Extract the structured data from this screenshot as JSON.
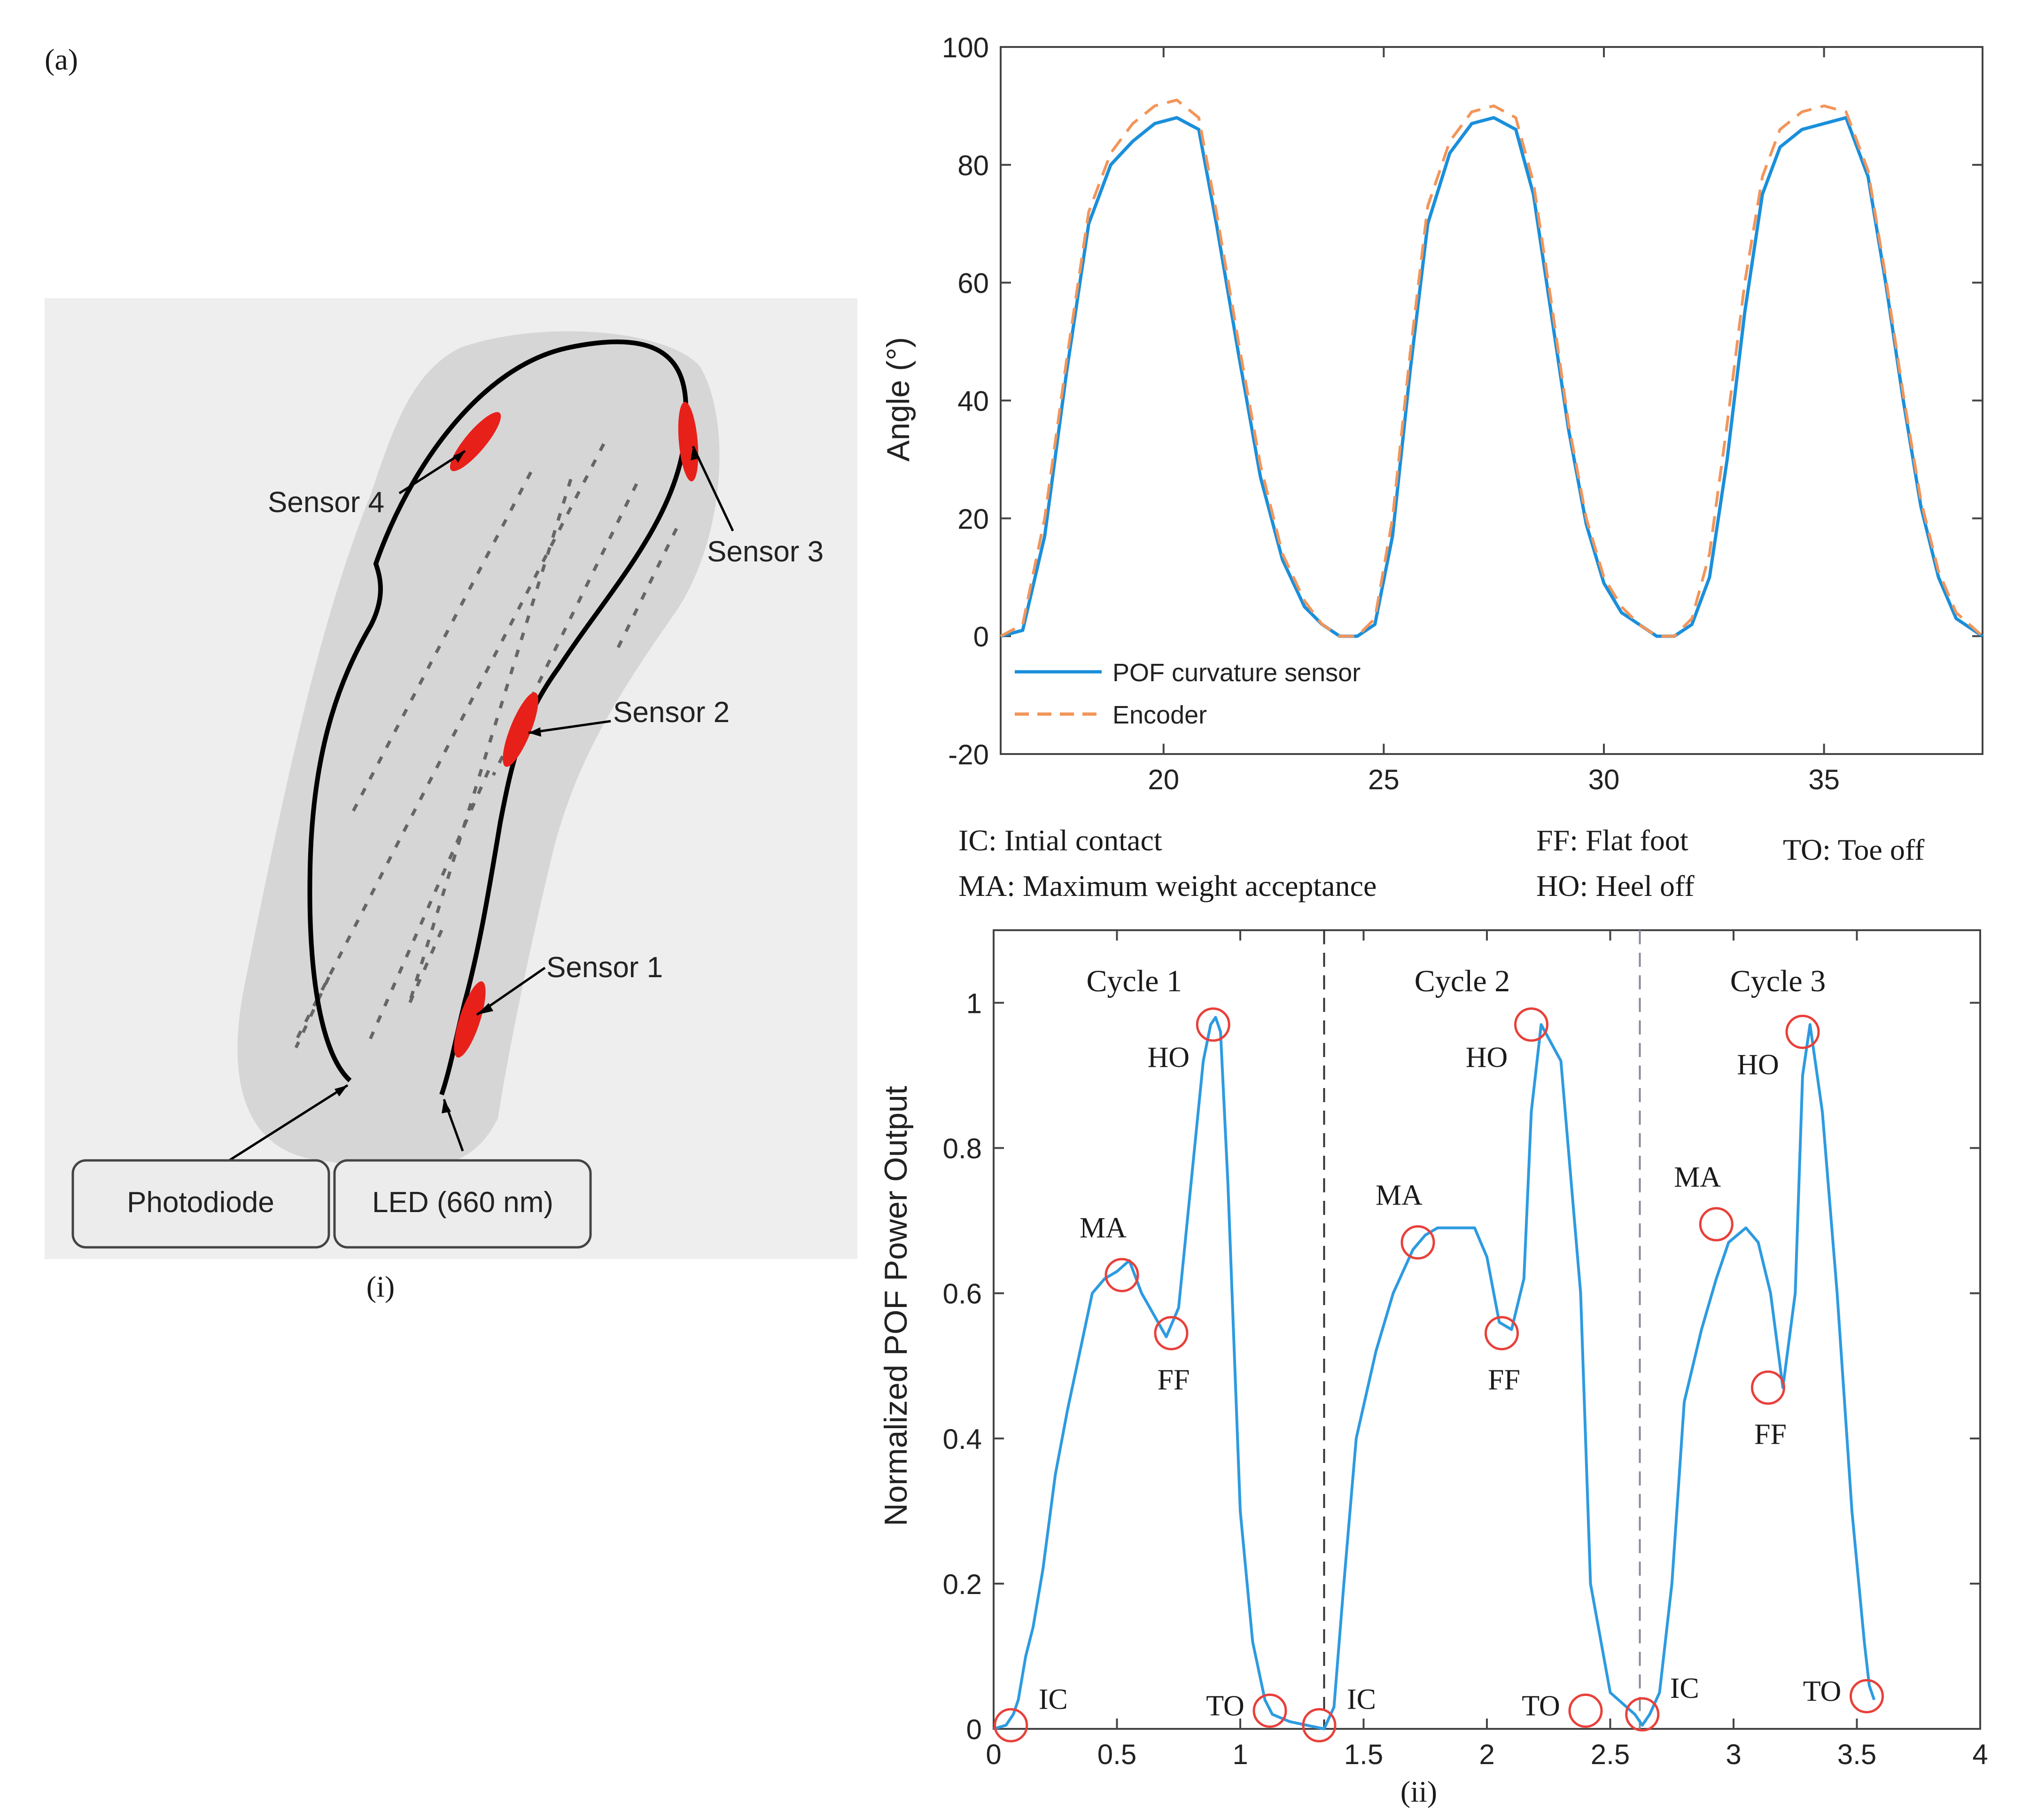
{
  "panel_label": "(a)",
  "diagram": {
    "caption": "(i)",
    "sensors": [
      {
        "label": "Sensor 1"
      },
      {
        "label": "Sensor 2"
      },
      {
        "label": "Sensor 3"
      },
      {
        "label": "Sensor 4"
      }
    ],
    "boxes": [
      {
        "label": "Photodiode"
      },
      {
        "label": "LED (660 nm)"
      }
    ],
    "colors": {
      "fiber": "#000000",
      "sensor": "#e8201a",
      "insole": "#d9d9d9",
      "background": "#eeeeee"
    }
  },
  "legend_defs": [
    {
      "text": "IC: Intial contact"
    },
    {
      "text": "MA: Maximum weight acceptance"
    },
    {
      "text": "FF: Flat foot"
    },
    {
      "text": "HO: Heel off"
    },
    {
      "text": "TO: Toe off"
    }
  ],
  "chart_data": [
    {
      "type": "line",
      "title": "",
      "xlabel": "",
      "ylabel": "Angle (°)",
      "xlim": [
        16.3,
        38.6
      ],
      "ylim": [
        -20,
        100
      ],
      "xticks": [
        20,
        25,
        30,
        35
      ],
      "yticks": [
        -20,
        0,
        20,
        40,
        60,
        80,
        100
      ],
      "legend_position": "bottom-left",
      "series": [
        {
          "name": "POF curvature sensor",
          "style": "solid",
          "color": "#1a8fdb",
          "x": [
            16.3,
            16.8,
            17.3,
            17.8,
            18.3,
            18.8,
            19.3,
            19.8,
            20.3,
            20.8,
            21.2,
            21.7,
            22.2,
            22.7,
            23.2,
            23.6,
            24.0,
            24.4,
            24.8,
            25.2,
            25.6,
            26.0,
            26.5,
            27.0,
            27.5,
            28.0,
            28.4,
            28.8,
            29.2,
            29.6,
            30.0,
            30.4,
            30.8,
            31.2,
            31.6,
            32.0,
            32.4,
            32.8,
            33.2,
            33.6,
            34.0,
            34.5,
            35.0,
            35.5,
            36.0,
            36.4,
            36.8,
            37.2,
            37.6,
            38.0,
            38.6
          ],
          "y": [
            0,
            1,
            17,
            45,
            70,
            80,
            84,
            87,
            88,
            86,
            70,
            48,
            27,
            13,
            5,
            2,
            0,
            0,
            2,
            17,
            45,
            70,
            82,
            87,
            88,
            86,
            75,
            55,
            35,
            19,
            9,
            4,
            2,
            0,
            0,
            2,
            10,
            30,
            55,
            75,
            83,
            86,
            87,
            88,
            78,
            60,
            40,
            22,
            10,
            3,
            0
          ]
        },
        {
          "name": "Encoder",
          "style": "dashed",
          "color": "#f2955a",
          "x": [
            16.3,
            16.8,
            17.3,
            17.8,
            18.3,
            18.8,
            19.3,
            19.8,
            20.3,
            20.8,
            21.2,
            21.7,
            22.2,
            22.7,
            23.2,
            23.6,
            24.0,
            24.4,
            24.8,
            25.2,
            25.6,
            26.0,
            26.5,
            27.0,
            27.5,
            28.0,
            28.4,
            28.8,
            29.2,
            29.6,
            30.0,
            30.4,
            30.8,
            31.2,
            31.6,
            32.0,
            32.4,
            32.8,
            33.2,
            33.6,
            34.0,
            34.5,
            35.0,
            35.5,
            36.0,
            36.4,
            36.8,
            37.2,
            37.6,
            38.0,
            38.6
          ],
          "y": [
            0,
            2,
            20,
            47,
            72,
            82,
            87,
            90,
            91,
            88,
            72,
            50,
            29,
            14,
            6,
            2,
            0,
            0,
            3,
            20,
            48,
            73,
            84,
            89,
            90,
            88,
            77,
            57,
            36,
            20,
            10,
            5,
            2,
            0,
            0,
            3,
            14,
            36,
            60,
            78,
            86,
            89,
            90,
            89,
            79,
            61,
            41,
            23,
            11,
            4,
            0
          ]
        }
      ]
    },
    {
      "type": "line",
      "title": "",
      "xlabel": "",
      "ylabel": "Normalized POF Power Output",
      "caption": "(ii)",
      "xlim": [
        0,
        4
      ],
      "ylim": [
        0,
        1.1
      ],
      "xticks": [
        0,
        0.5,
        1,
        1.5,
        2,
        2.5,
        3,
        3.5,
        4
      ],
      "xtick_labels": [
        "0",
        "0.5",
        "1",
        "1.5",
        "2",
        "2.5",
        "3",
        "3.5",
        "4"
      ],
      "yticks": [
        0,
        0.2,
        0.4,
        0.6,
        0.8,
        1
      ],
      "ytick_labels": [
        "0",
        "0.2",
        "0.4",
        "0.6",
        "0.8",
        "1"
      ],
      "cycle_dividers": [
        1.34,
        2.62
      ],
      "cycles": [
        {
          "label": "Cycle 1",
          "x": 0.57
        },
        {
          "label": "Cycle 2",
          "x": 1.9
        },
        {
          "label": "Cycle 3",
          "x": 3.18
        }
      ],
      "series": [
        {
          "name": "Normalized POF power",
          "color": "#2d9be0",
          "x": [
            0,
            0.05,
            0.08,
            0.1,
            0.13,
            0.16,
            0.2,
            0.25,
            0.3,
            0.35,
            0.4,
            0.45,
            0.5,
            0.55,
            0.6,
            0.65,
            0.7,
            0.75,
            0.8,
            0.85,
            0.88,
            0.9,
            0.92,
            0.95,
            1.0,
            1.05,
            1.1,
            1.13,
            1.2,
            1.27,
            1.34,
            1.38,
            1.42,
            1.47,
            1.55,
            1.62,
            1.7,
            1.75,
            1.8,
            1.87,
            1.95,
            2.0,
            2.05,
            2.1,
            2.15,
            2.18,
            2.22,
            2.3,
            2.38,
            2.42,
            2.5,
            2.6,
            2.63,
            2.66,
            2.7,
            2.75,
            2.8,
            2.87,
            2.93,
            2.98,
            3.05,
            3.1,
            3.15,
            3.2,
            3.25,
            3.28,
            3.31,
            3.36,
            3.42,
            3.48,
            3.53,
            3.55,
            3.57
          ],
          "y": [
            0,
            0.005,
            0.02,
            0.04,
            0.1,
            0.14,
            0.22,
            0.35,
            0.44,
            0.52,
            0.6,
            0.62,
            0.63,
            0.645,
            0.6,
            0.57,
            0.54,
            0.58,
            0.75,
            0.92,
            0.97,
            0.98,
            0.96,
            0.75,
            0.3,
            0.12,
            0.04,
            0.02,
            0.01,
            0.005,
            0,
            0.03,
            0.2,
            0.4,
            0.52,
            0.6,
            0.66,
            0.68,
            0.69,
            0.69,
            0.69,
            0.65,
            0.56,
            0.55,
            0.62,
            0.85,
            0.97,
            0.92,
            0.6,
            0.2,
            0.05,
            0.02,
            0.005,
            0.02,
            0.05,
            0.2,
            0.45,
            0.55,
            0.62,
            0.67,
            0.69,
            0.67,
            0.6,
            0.47,
            0.6,
            0.9,
            0.97,
            0.85,
            0.6,
            0.3,
            0.12,
            0.06,
            0.04
          ]
        }
      ],
      "events": [
        {
          "label": "IC",
          "x": 0.07,
          "y": 0.005
        },
        {
          "label": "MA",
          "x": 0.52,
          "y": 0.625
        },
        {
          "label": "FF",
          "x": 0.72,
          "y": 0.545
        },
        {
          "label": "HO",
          "x": 0.89,
          "y": 0.97
        },
        {
          "label": "TO",
          "x": 1.12,
          "y": 0.025
        },
        {
          "label": "IC",
          "x": 1.32,
          "y": 0.005
        },
        {
          "label": "MA",
          "x": 1.72,
          "y": 0.67
        },
        {
          "label": "FF",
          "x": 2.06,
          "y": 0.545
        },
        {
          "label": "HO",
          "x": 2.18,
          "y": 0.97
        },
        {
          "label": "TO",
          "x": 2.4,
          "y": 0.025
        },
        {
          "label": "IC",
          "x": 2.63,
          "y": 0.02
        },
        {
          "label": "MA",
          "x": 2.93,
          "y": 0.695
        },
        {
          "label": "FF",
          "x": 3.14,
          "y": 0.47
        },
        {
          "label": "HO",
          "x": 3.28,
          "y": 0.96
        },
        {
          "label": "TO",
          "x": 3.54,
          "y": 0.045
        }
      ]
    }
  ]
}
